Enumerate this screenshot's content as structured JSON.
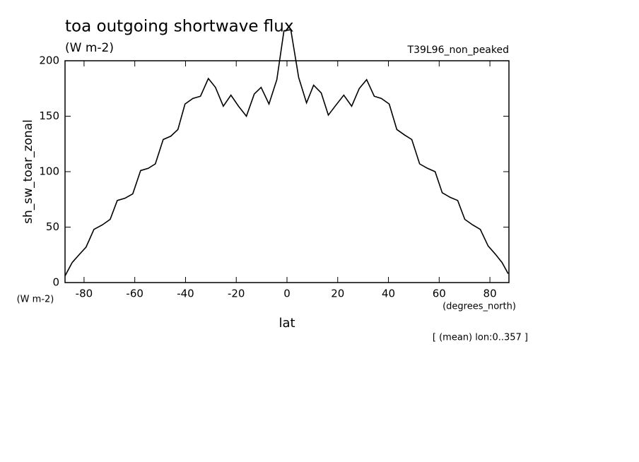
{
  "chart_data": {
    "type": "line",
    "title": "toa outgoing shortwave flux",
    "subtitle": "(W m-2)",
    "dataset_label": "T39L96_non_peaked",
    "y_label": "sh_sw_toar_zonal",
    "y_units": "(W m-2)",
    "x_label": "lat",
    "x_units": "(degrees_north)",
    "footnote": "[ (mean) lon:0..357 ]",
    "x": [
      -87.5,
      -84.7,
      -82,
      -79.2,
      -76.1,
      -72.8,
      -69.7,
      -66.9,
      -63.9,
      -60.8,
      -57.7,
      -54.7,
      -51.9,
      -48.8,
      -45.8,
      -43,
      -40.2,
      -37.1,
      -34.1,
      -31,
      -28.2,
      -25.1,
      -22.1,
      -19.1,
      -16,
      -12.9,
      -10.2,
      -7.1,
      -4,
      -1.2,
      1.5,
      4.6,
      7.7,
      10.5,
      13.5,
      16.3,
      19.3,
      22.4,
      25.5,
      28.5,
      31.4,
      34.4,
      37.2,
      40.3,
      43.3,
      46.4,
      49.2,
      52.3,
      55.4,
      58.4,
      61.2,
      64.2,
      67.3,
      70.1,
      73.2,
      76.2,
      79.3,
      82,
      84.8,
      87.2
    ],
    "series": [
      {
        "name": "sh_sw_toar_zonal",
        "color": "#000000",
        "values": [
          6,
          18,
          25,
          32,
          48,
          52,
          57,
          74,
          76,
          80,
          101,
          103,
          107,
          129,
          132,
          138,
          161,
          166,
          168,
          184,
          176,
          159,
          169,
          159,
          150,
          170,
          176,
          161,
          183,
          227,
          228,
          185,
          162,
          178,
          171,
          151,
          160,
          169,
          159,
          175,
          183,
          168,
          166,
          161,
          138,
          133,
          129,
          107,
          103,
          100,
          81,
          77,
          74,
          57,
          52,
          48,
          33,
          26,
          18,
          8
        ]
      }
    ],
    "xlim": [
      -87.5,
      87.5
    ],
    "ylim": [
      0,
      200
    ],
    "xticks": [
      -80,
      -60,
      -40,
      -20,
      0,
      20,
      40,
      60,
      80
    ],
    "yticks": [
      0,
      50,
      100,
      150,
      200
    ]
  }
}
